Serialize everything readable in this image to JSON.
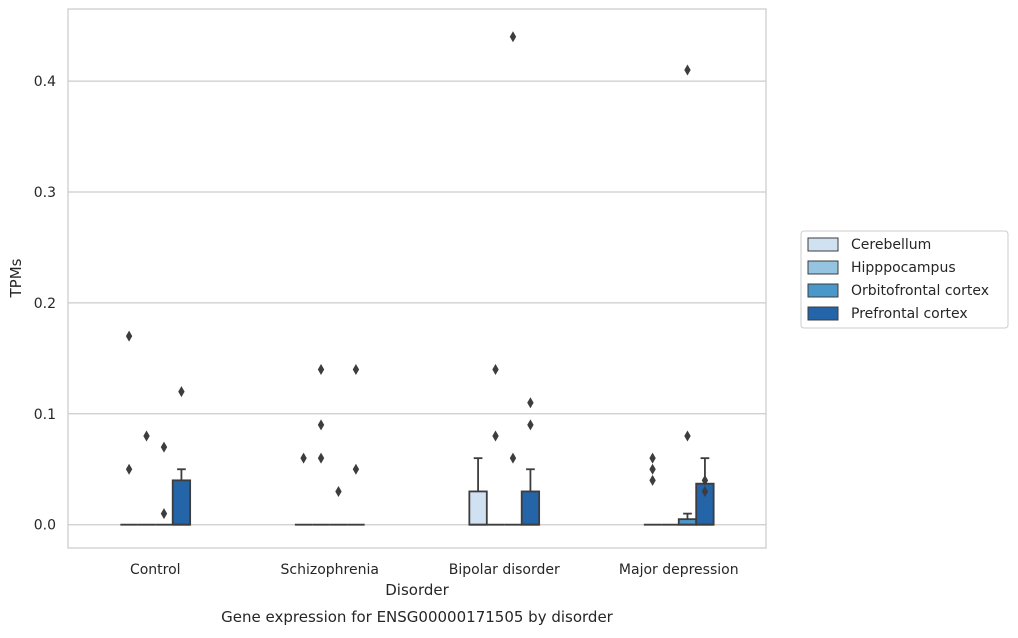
{
  "chart_data": {
    "type": "box",
    "caption": "Gene expression for ENSG00000171505 by disorder",
    "xlabel": "Disorder",
    "ylabel": "TPMs",
    "categories": [
      "Control",
      "Schizophrenia",
      "Bipolar disorder",
      "Major depression"
    ],
    "yticks": [
      0.0,
      0.1,
      0.2,
      0.3,
      0.4
    ],
    "ytick_labels": [
      "0.0",
      "0.1",
      "0.2",
      "0.3",
      "0.4"
    ],
    "ylim": [
      -0.021,
      0.465
    ],
    "grid": "horizontal",
    "legend_position": "right",
    "series": [
      {
        "name": "Cerebellum",
        "color": "#d0e1f2",
        "boxes": [
          {
            "q1": 0,
            "median": 0,
            "q3": 0,
            "whisker_low": 0,
            "whisker_high": 0,
            "fliers": [
              0.05,
              0.17
            ]
          },
          {
            "q1": 0,
            "median": 0,
            "q3": 0,
            "whisker_low": 0,
            "whisker_high": 0,
            "fliers": [
              0.06
            ]
          },
          {
            "q1": 0,
            "median": 0,
            "q3": 0.03,
            "whisker_low": 0,
            "whisker_high": 0.06,
            "fliers": []
          },
          {
            "q1": 0,
            "median": 0,
            "q3": 0,
            "whisker_low": 0,
            "whisker_high": 0,
            "fliers": [
              0.04,
              0.05,
              0.06
            ]
          }
        ]
      },
      {
        "name": "Hipppocampus",
        "color": "#94c4df",
        "boxes": [
          {
            "q1": 0,
            "median": 0,
            "q3": 0,
            "whisker_low": 0,
            "whisker_high": 0,
            "fliers": [
              0.08
            ]
          },
          {
            "q1": 0,
            "median": 0,
            "q3": 0,
            "whisker_low": 0,
            "whisker_high": 0,
            "fliers": [
              0.06,
              0.09,
              0.14
            ]
          },
          {
            "q1": 0,
            "median": 0,
            "q3": 0,
            "whisker_low": 0,
            "whisker_high": 0,
            "fliers": [
              0.08,
              0.14
            ]
          },
          {
            "q1": 0,
            "median": 0,
            "q3": 0,
            "whisker_low": 0,
            "whisker_high": 0,
            "fliers": []
          }
        ]
      },
      {
        "name": "Orbitofrontal cortex",
        "color": "#4a98c9",
        "boxes": [
          {
            "q1": 0,
            "median": 0,
            "q3": 0,
            "whisker_low": 0,
            "whisker_high": 0,
            "fliers": [
              0.01,
              0.07
            ]
          },
          {
            "q1": 0,
            "median": 0,
            "q3": 0,
            "whisker_low": 0,
            "whisker_high": 0,
            "fliers": [
              0.03
            ]
          },
          {
            "q1": 0,
            "median": 0,
            "q3": 0,
            "whisker_low": 0,
            "whisker_high": 0,
            "fliers": [
              0.06,
              0.44
            ]
          },
          {
            "q1": 0,
            "median": 0,
            "q3": 0.005,
            "whisker_low": 0,
            "whisker_high": 0.01,
            "fliers": [
              0.08,
              0.41
            ]
          }
        ]
      },
      {
        "name": "Prefrontal cortex",
        "color": "#2464a8",
        "boxes": [
          {
            "q1": 0,
            "median": 0,
            "q3": 0.04,
            "whisker_low": 0,
            "whisker_high": 0.05,
            "fliers": [
              0.12
            ]
          },
          {
            "q1": 0,
            "median": 0,
            "q3": 0,
            "whisker_low": 0,
            "whisker_high": 0,
            "fliers": [
              0.05,
              0.14
            ]
          },
          {
            "q1": 0,
            "median": 0,
            "q3": 0.03,
            "whisker_low": 0,
            "whisker_high": 0.05,
            "fliers": [
              0.09,
              0.11
            ]
          },
          {
            "q1": 0,
            "median": 0,
            "q3": 0.037,
            "whisker_low": 0,
            "whisker_high": 0.06,
            "fliers": [
              0.03,
              0.04
            ]
          }
        ]
      }
    ]
  }
}
